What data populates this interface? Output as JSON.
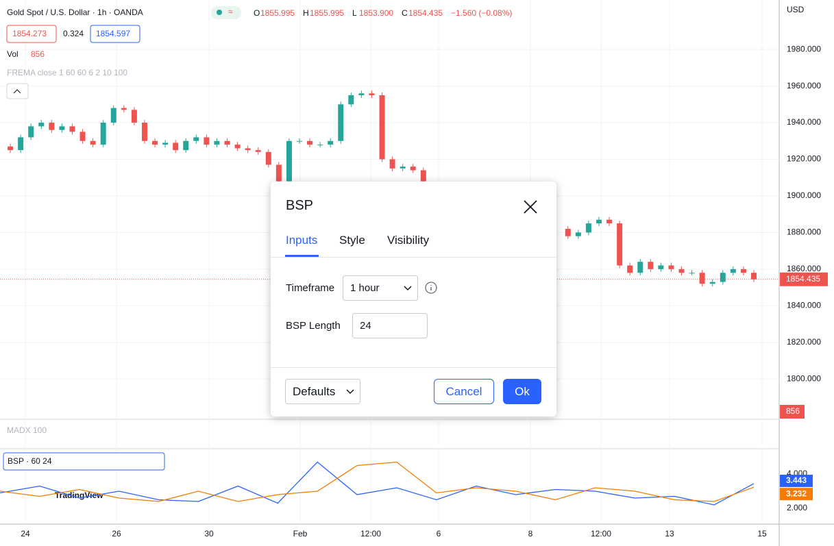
{
  "header": {
    "symbol": "Gold Spot / U.S. Dollar · 1h · OANDA",
    "badge": "≈",
    "ohlc": [
      {
        "label": "O",
        "value": "1855.995"
      },
      {
        "label": "H",
        "value": "1855.995"
      },
      {
        "label": "L",
        "value": "1853.900"
      },
      {
        "label": "C",
        "value": "1854.435"
      }
    ],
    "change": "−1.560 (−0.08%)",
    "bid": "1854.273",
    "spread": "0.324",
    "ask": "1854.597",
    "vol_label": "Vol",
    "vol_value": "856",
    "frema": "FREMA close 1 60 60 6 2 10 100",
    "madx": "MADX 100",
    "bsp_legend": "BSP · 60 24",
    "currency": "USD",
    "watermark": "TradingView"
  },
  "chart_data": {
    "type": "candlestick",
    "closes": [
      1927,
      1925,
      1932,
      1938,
      1940,
      1936,
      1938,
      1935,
      1930,
      1928,
      1940,
      1948,
      1947,
      1940,
      1930,
      1928,
      1929,
      1925,
      1930,
      1932,
      1928,
      1930,
      1928,
      1926,
      1925,
      1924,
      1917,
      1908,
      1930,
      1930,
      1928,
      1928,
      1930,
      1950,
      1955,
      1956,
      1955,
      1920,
      1915,
      1916,
      1914,
      1908,
      null,
      null,
      null,
      null,
      null,
      null,
      null,
      null,
      null,
      null,
      null,
      null,
      1882,
      1878,
      1880,
      1885,
      1887,
      1885,
      1862,
      1858,
      1864,
      1860,
      1862,
      1860,
      1858,
      1858,
      1852,
      1853,
      1858,
      1860,
      1858,
      1854.435
    ],
    "ylim": [
      1778,
      2007
    ],
    "yticks": [
      {
        "value": 1800,
        "label": "1800.000"
      },
      {
        "value": 1820,
        "label": "1820.000"
      },
      {
        "value": 1840,
        "label": "1840.000"
      },
      {
        "value": 1860,
        "label": "1860.000"
      },
      {
        "value": 1880,
        "label": "1880.000"
      },
      {
        "value": 1900,
        "label": "1900.000"
      },
      {
        "value": 1920,
        "label": "1920.000"
      },
      {
        "value": 1940,
        "label": "1940.000"
      },
      {
        "value": 1960,
        "label": "1960.000"
      },
      {
        "value": 1980,
        "label": "1980.000"
      }
    ],
    "xticks": [
      "24",
      "26",
      "30",
      "Feb",
      "12:00",
      "6",
      "8",
      "12:00",
      "13",
      "15"
    ],
    "up_color": "#26a69a",
    "down_color": "#ef5350",
    "grid": true
  },
  "bsp": {
    "ylim": [
      1.08,
      5.48
    ],
    "yticks": [
      {
        "value": 2,
        "label": "2.000"
      },
      {
        "value": 4,
        "label": "4.000"
      }
    ],
    "series": [
      {
        "color": "#2962ff",
        "values": [
          2.9,
          3.3,
          2.6,
          3.0,
          2.5,
          2.4,
          3.3,
          2.3,
          4.7,
          2.8,
          3.2,
          2.5,
          3.3,
          2.8,
          3.1,
          3.0,
          2.6,
          2.7,
          2.2,
          3.443
        ]
      },
      {
        "color": "#f57c00",
        "values": [
          3.0,
          2.7,
          3.1,
          2.6,
          2.4,
          3.0,
          2.4,
          2.8,
          3.0,
          4.5,
          4.7,
          2.9,
          3.2,
          3.0,
          2.5,
          3.2,
          3.0,
          2.5,
          2.4,
          3.232
        ]
      }
    ]
  },
  "dialog": {
    "title": "BSP",
    "tabs": [
      "Inputs",
      "Style",
      "Visibility"
    ],
    "timeframe_label": "Timeframe",
    "timeframe_value": "1 hour",
    "length_label": "BSP Length",
    "length_value": "24",
    "defaults": "Defaults",
    "cancel": "Cancel",
    "ok": "Ok"
  }
}
